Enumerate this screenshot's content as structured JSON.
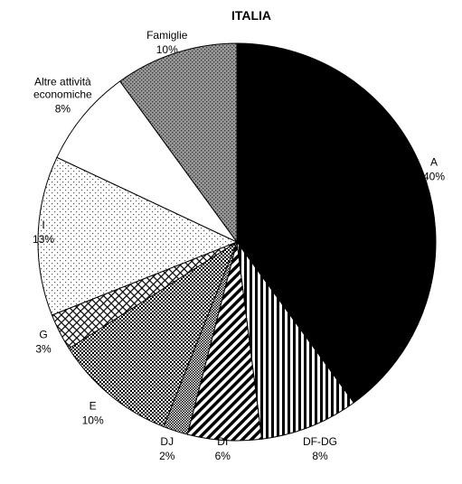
{
  "chart_data": {
    "type": "pie",
    "title": "ITALIA",
    "categories": [
      "A",
      "DF-DG",
      "DI",
      "DJ",
      "E",
      "G",
      "I",
      "Altre attività economiche",
      "Famiglie"
    ],
    "values": [
      40,
      8,
      6,
      2,
      10,
      3,
      13,
      8,
      10
    ],
    "value_labels": [
      "40%",
      "8%",
      "6%",
      "2%",
      "10%",
      "3%",
      "13%",
      "8%",
      "10%"
    ]
  }
}
